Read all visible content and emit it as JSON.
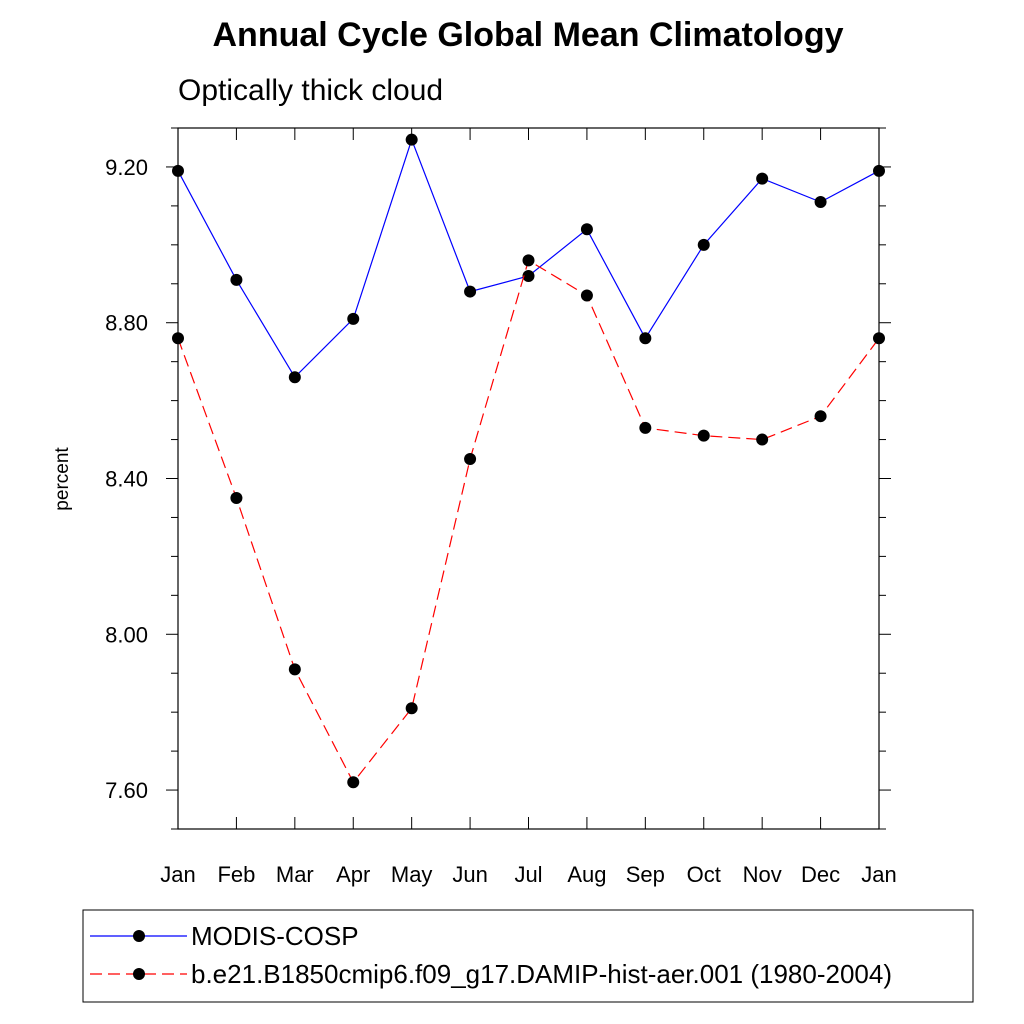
{
  "chart_data": {
    "type": "line",
    "title": "Annual Cycle Global Mean Climatology",
    "subtitle": "Optically thick cloud",
    "xlabel": "",
    "ylabel": "percent",
    "categories": [
      "Jan",
      "Feb",
      "Mar",
      "Apr",
      "May",
      "Jun",
      "Jul",
      "Aug",
      "Sep",
      "Oct",
      "Nov",
      "Dec",
      "Jan"
    ],
    "ylim": [
      7.5,
      9.3
    ],
    "y_ticks": [
      7.6,
      8.0,
      8.4,
      8.8,
      9.2
    ],
    "y_tick_labels": [
      "7.60",
      "8.00",
      "8.40",
      "8.80",
      "9.20"
    ],
    "grid": false,
    "legend_position": "bottom",
    "series": [
      {
        "name": "MODIS-COSP",
        "color": "#0000ff",
        "line_style": "solid",
        "values": [
          9.19,
          8.91,
          8.66,
          8.81,
          9.27,
          8.88,
          8.92,
          9.04,
          8.76,
          9.0,
          9.17,
          9.11,
          9.19
        ]
      },
      {
        "name": "b.e21.B1850cmip6.f09_g17.DAMIP-hist-aer.001 (1980-2004)",
        "color": "#ff0000",
        "line_style": "dashed",
        "values": [
          8.76,
          8.35,
          7.91,
          7.62,
          7.81,
          8.45,
          8.96,
          8.87,
          8.53,
          8.51,
          8.5,
          8.56,
          8.76
        ]
      }
    ]
  }
}
